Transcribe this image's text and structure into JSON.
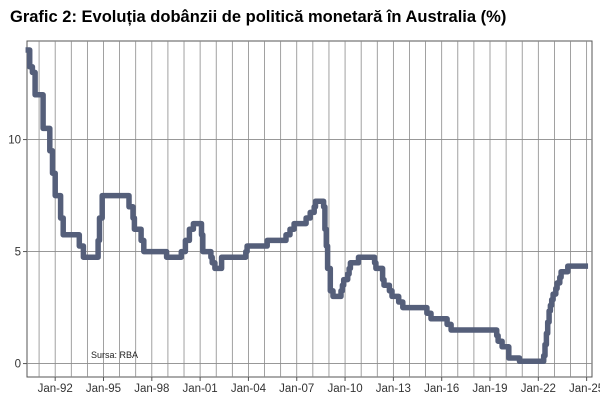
{
  "chart_data": {
    "type": "line",
    "title": "Grafic 2: Evoluția dobânzii de politică monetară în Australia (%)",
    "xlabel": "",
    "ylabel": "",
    "source_note": "Sursa: RBA",
    "x_ticks": [
      "Jan-92",
      "Jan-95",
      "Jan-98",
      "Jan-01",
      "Jan-04",
      "Jan-07",
      "Jan-10",
      "Jan-13",
      "Jan-16",
      "Jan-19",
      "Jan-22",
      "Jan-25"
    ],
    "y_ticks": [
      "0",
      "5",
      "10"
    ],
    "xlim": [
      "1990-04",
      "2025-05"
    ],
    "ylim": [
      -0.6,
      14.4
    ],
    "grid": true,
    "legend": "none",
    "series": [
      {
        "color": "#555f7a",
        "points": [
          [
            "1990-05",
            14.0
          ],
          [
            "1990-06",
            13.25
          ],
          [
            "1990-08",
            13.0
          ],
          [
            "1990-10",
            12.0
          ],
          [
            "1990-12",
            12.0
          ],
          [
            "1991-04",
            10.5
          ],
          [
            "1991-07",
            10.5
          ],
          [
            "1991-09",
            9.5
          ],
          [
            "1991-11",
            8.5
          ],
          [
            "1992-01",
            7.5
          ],
          [
            "1992-05",
            6.5
          ],
          [
            "1992-07",
            5.75
          ],
          [
            "1993-03",
            5.75
          ],
          [
            "1993-07",
            5.25
          ],
          [
            "1993-10",
            4.75
          ],
          [
            "1994-08",
            4.75
          ],
          [
            "1994-09",
            5.5
          ],
          [
            "1994-10",
            6.5
          ],
          [
            "1994-12",
            7.5
          ],
          [
            "1996-07",
            7.5
          ],
          [
            "1996-08",
            7.0
          ],
          [
            "1996-11",
            6.5
          ],
          [
            "1996-12",
            6.0
          ],
          [
            "1997-05",
            5.5
          ],
          [
            "1997-07",
            5.0
          ],
          [
            "1998-12",
            4.75
          ],
          [
            "1999-11",
            5.0
          ],
          [
            "2000-02",
            5.5
          ],
          [
            "2000-05",
            6.0
          ],
          [
            "2000-08",
            6.25
          ],
          [
            "2001-02",
            5.75
          ],
          [
            "2001-03",
            5.0
          ],
          [
            "2001-09",
            4.75
          ],
          [
            "2001-10",
            4.5
          ],
          [
            "2001-12",
            4.25
          ],
          [
            "2002-05",
            4.75
          ],
          [
            "2003-11",
            5.0
          ],
          [
            "2003-12",
            5.25
          ],
          [
            "2005-03",
            5.5
          ],
          [
            "2006-05",
            5.75
          ],
          [
            "2006-08",
            6.0
          ],
          [
            "2006-11",
            6.25
          ],
          [
            "2007-08",
            6.5
          ],
          [
            "2007-11",
            6.75
          ],
          [
            "2008-02",
            7.0
          ],
          [
            "2008-03",
            7.25
          ],
          [
            "2008-09",
            7.0
          ],
          [
            "2008-10",
            6.0
          ],
          [
            "2008-11",
            5.25
          ],
          [
            "2008-12",
            4.25
          ],
          [
            "2009-02",
            3.25
          ],
          [
            "2009-04",
            3.0
          ],
          [
            "2009-10",
            3.25
          ],
          [
            "2009-11",
            3.5
          ],
          [
            "2009-12",
            3.75
          ],
          [
            "2010-03",
            4.0
          ],
          [
            "2010-04",
            4.25
          ],
          [
            "2010-05",
            4.5
          ],
          [
            "2010-11",
            4.75
          ],
          [
            "2011-11",
            4.5
          ],
          [
            "2011-12",
            4.25
          ],
          [
            "2012-05",
            3.75
          ],
          [
            "2012-06",
            3.5
          ],
          [
            "2012-10",
            3.25
          ],
          [
            "2012-12",
            3.0
          ],
          [
            "2013-05",
            2.75
          ],
          [
            "2013-08",
            2.5
          ],
          [
            "2015-02",
            2.25
          ],
          [
            "2015-05",
            2.0
          ],
          [
            "2016-05",
            1.75
          ],
          [
            "2016-08",
            1.5
          ],
          [
            "2019-06",
            1.25
          ],
          [
            "2019-07",
            1.0
          ],
          [
            "2019-10",
            0.75
          ],
          [
            "2020-03",
            0.25
          ],
          [
            "2020-11",
            0.1
          ],
          [
            "2022-05",
            0.35
          ],
          [
            "2022-06",
            0.85
          ],
          [
            "2022-07",
            1.35
          ],
          [
            "2022-08",
            1.85
          ],
          [
            "2022-09",
            2.35
          ],
          [
            "2022-10",
            2.6
          ],
          [
            "2022-11",
            2.85
          ],
          [
            "2022-12",
            3.1
          ],
          [
            "2023-02",
            3.35
          ],
          [
            "2023-03",
            3.6
          ],
          [
            "2023-05",
            3.85
          ],
          [
            "2023-06",
            4.1
          ],
          [
            "2023-11",
            4.35
          ],
          [
            "2024-12",
            4.35
          ]
        ]
      }
    ]
  }
}
